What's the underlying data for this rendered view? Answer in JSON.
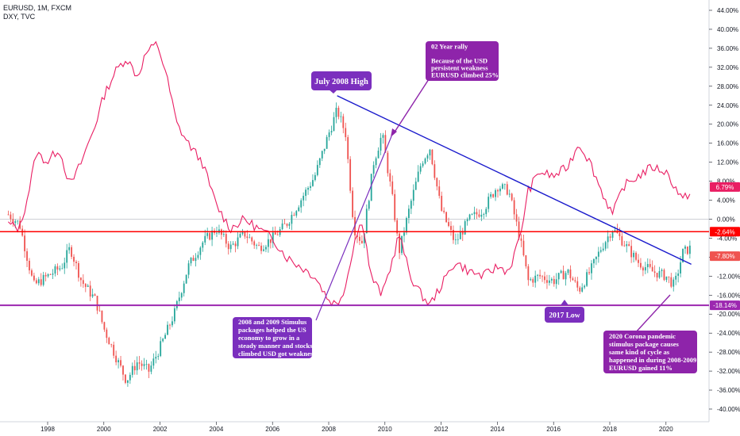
{
  "header": {
    "symbol_line": "EURUSD, 1M, FXCM",
    "compare_line": "DXY, TVC"
  },
  "colors": {
    "eurusd_up": "#26a69a",
    "eurusd_down": "#ef5350",
    "dxy_line": "#e91e63",
    "trendline": "#1a1acc",
    "red_level": "#ff0000",
    "purple_level": "#9c27b0",
    "note_fill": "#7b2fbe",
    "note_fill_pink": "#8e24aa"
  },
  "chart_data": {
    "type": "line",
    "scale": "percent",
    "xlim": [
      1996.5,
      2021.5
    ],
    "ylim": [
      -42,
      46
    ],
    "x_ticks": [
      "1998",
      "2000",
      "2002",
      "2004",
      "2006",
      "2008",
      "2010",
      "2012",
      "2014",
      "2016",
      "2018",
      "2020"
    ],
    "y_ticks": [
      "44.00%",
      "40.00%",
      "36.00%",
      "32.00%",
      "28.00%",
      "24.00%",
      "20.00%",
      "16.00%",
      "12.00%",
      "8.00%",
      "4.00%",
      "0.00%",
      "-4.00%",
      "-8.00%",
      "-12.00%",
      "-16.00%",
      "-20.00%",
      "-24.00%",
      "-28.00%",
      "-32.00%",
      "-36.00%",
      "-40.00%"
    ],
    "series": [
      {
        "name": "EURUSD, 1M, FXCM",
        "x": [
          1996.6,
          1997.0,
          1997.5,
          1998.0,
          1998.5,
          1998.8,
          1999.2,
          1999.7,
          2000.0,
          2000.5,
          2000.8,
          2001.2,
          2001.6,
          2002.0,
          2002.5,
          2003.0,
          2003.5,
          2004.0,
          2004.5,
          2005.0,
          2005.5,
          2006.0,
          2006.5,
          2007.0,
          2007.5,
          2008.0,
          2008.3,
          2008.6,
          2008.9,
          2009.2,
          2009.6,
          2009.9,
          2010.3,
          2010.5,
          2010.9,
          2011.3,
          2011.6,
          2012.0,
          2012.5,
          2013.0,
          2013.5,
          2014.0,
          2014.4,
          2014.8,
          2015.1,
          2015.5,
          2016.0,
          2016.5,
          2016.9,
          2017.3,
          2017.7,
          2018.1,
          2018.5,
          2019.0,
          2019.5,
          2020.0,
          2020.3,
          2020.6,
          2020.9
        ],
        "values": [
          1,
          -1,
          -14,
          -12,
          -10,
          -6,
          -13,
          -17,
          -23,
          -30,
          -34,
          -30,
          -32,
          -27,
          -20,
          -10,
          -5,
          -2,
          -6,
          -3,
          -6,
          -4,
          -1,
          4,
          9,
          18,
          23,
          18,
          -2,
          -5,
          12,
          18,
          3,
          -7,
          3,
          12,
          15,
          2,
          -5,
          0,
          2,
          7,
          6,
          -4,
          -13,
          -12,
          -13,
          -11,
          -15,
          -11,
          -6,
          -2,
          -5,
          -9,
          -11,
          -12,
          -14,
          -7,
          -6
        ]
      },
      {
        "name": "DXY, TVC",
        "x": [
          1996.6,
          1997.0,
          1997.3,
          1997.6,
          1998.0,
          1998.4,
          1998.8,
          1999.2,
          1999.7,
          2000.0,
          2000.4,
          2000.8,
          2001.2,
          2001.5,
          2001.9,
          2002.2,
          2002.6,
          2003.0,
          2003.5,
          2004.0,
          2004.5,
          2005.0,
          2005.5,
          2006.0,
          2006.5,
          2007.0,
          2007.5,
          2008.0,
          2008.3,
          2008.6,
          2008.9,
          2009.2,
          2009.5,
          2009.9,
          2010.3,
          2010.5,
          2010.9,
          2011.3,
          2011.6,
          2012.0,
          2012.5,
          2013.0,
          2013.5,
          2014.0,
          2014.4,
          2014.8,
          2015.1,
          2015.5,
          2016.0,
          2016.5,
          2016.9,
          2017.3,
          2017.7,
          2018.1,
          2018.5,
          2019.0,
          2019.5,
          2020.0,
          2020.3,
          2020.6,
          2020.9
        ],
        "values": [
          -1,
          -2,
          5,
          14,
          12,
          15,
          7,
          12,
          20,
          26,
          31,
          34,
          30,
          35,
          37,
          31,
          20,
          16,
          12,
          3,
          -2,
          0,
          -2,
          -4,
          -8,
          -10,
          -12,
          -17,
          -18,
          -14,
          -5,
          0,
          -12,
          -16,
          -8,
          -3,
          -12,
          -16,
          -18,
          -14,
          -9,
          -11,
          -12,
          -10,
          -11,
          -4,
          6,
          10,
          9,
          11,
          16,
          12,
          6,
          1,
          7,
          9,
          11,
          10,
          7,
          4,
          6
        ]
      }
    ],
    "reference_lines": [
      {
        "value": -2.64,
        "label": "-2.64%"
      },
      {
        "value": -18.14,
        "label": "-18.14%"
      }
    ],
    "last_value_badges": [
      {
        "value": 6.79,
        "label": "6.79%"
      },
      {
        "value": -7.8,
        "label": "-7.80%"
      }
    ],
    "trendline": {
      "x0": 2008.3,
      "y0": 26,
      "x1": 2020.9,
      "y1": -9.5
    },
    "annotations": [
      {
        "id": "july-high",
        "text": [
          "July 2008 High"
        ]
      },
      {
        "id": "rally",
        "text": [
          "02 Year rally",
          "",
          "Because of the USD",
          "persistent weakness",
          "EURUSD climbed 25%"
        ]
      },
      {
        "id": "stimulus",
        "text": [
          "2008 and 2009 Stimulus",
          "packages helped the US",
          "economy to grow in a",
          "steady manner and stocks",
          "climbed USD got weakness"
        ]
      },
      {
        "id": "low-2017",
        "text": [
          "2017 Low"
        ]
      },
      {
        "id": "corona",
        "text": [
          "2020 Corona pandemic",
          "stimulus package causes",
          "same kind of cycle as",
          "happened in during 2008-2009",
          "EURUSD gained 11%"
        ]
      }
    ]
  }
}
